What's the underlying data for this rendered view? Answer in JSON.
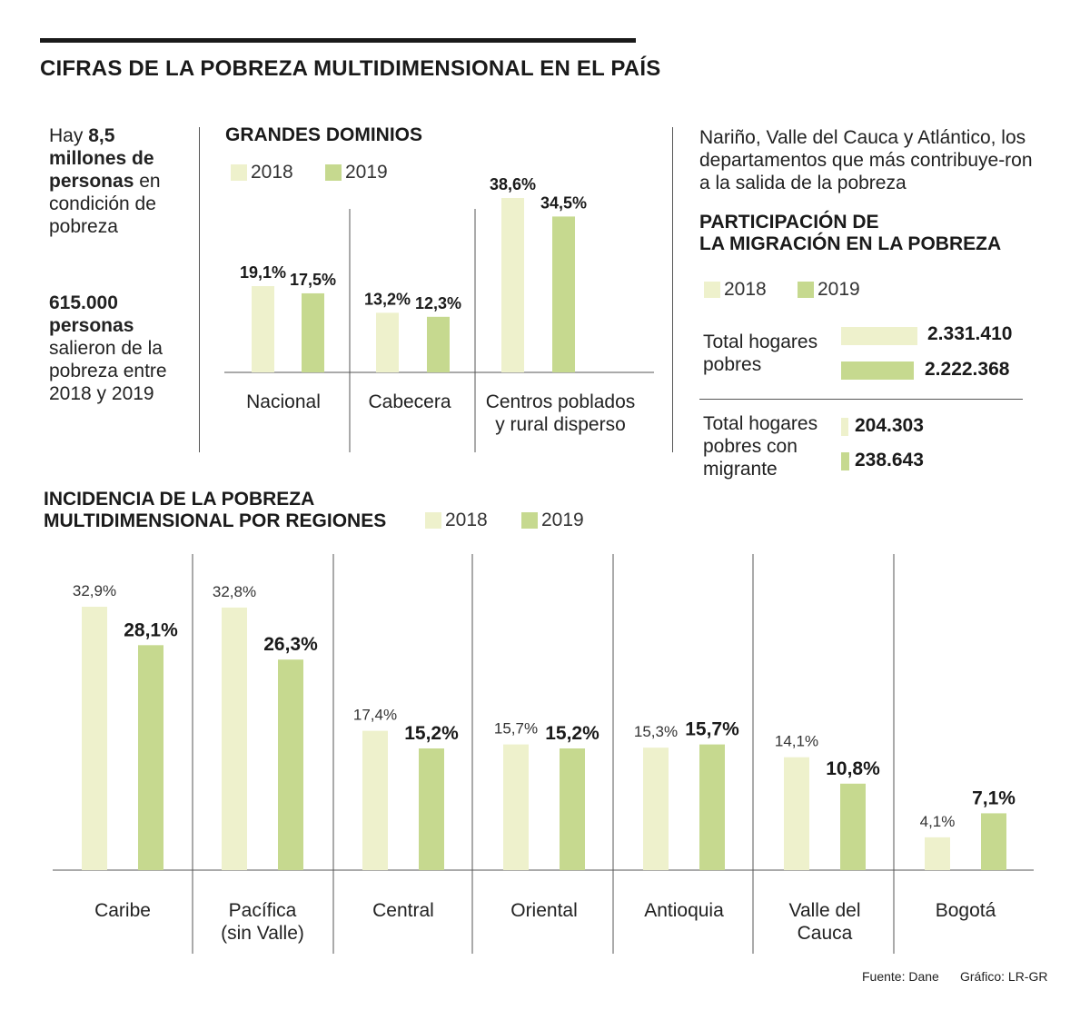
{
  "colors": {
    "y2018": "#eef1cc",
    "y2019": "#c6d98f",
    "axis": "#555555",
    "text": "#1a1a1a"
  },
  "title": "CIFRAS DE LA POBREZA MULTIDIMENSIONAL EN EL PAÍS",
  "intro": {
    "p1_pre": "Hay ",
    "p1_bold": "8,5 millones de personas",
    "p1_post": " en condición de pobreza",
    "p2_bold": "615.000 personas",
    "p2_post": "salieron de la pobreza entre 2018 y 2019"
  },
  "legend": {
    "y2018": "2018",
    "y2019": "2019"
  },
  "right_panel": {
    "intro": "Nariño, Valle del Cauca y Atlántico, los departamentos que más contribuye-ron a la salida de la pobreza",
    "heading_line1": "PARTICIPACIÓN DE",
    "heading_line2": "LA MIGRACIÓN EN LA POBREZA",
    "rows": [
      {
        "label": "Total hogares pobres",
        "v2018": "2.331.410",
        "v2019": "2.222.368",
        "n2018": 2331410,
        "n2019": 2222368
      },
      {
        "label": "Total hogares pobres con migrante",
        "v2018": "204.303",
        "v2019": "238.643",
        "n2018": 204303,
        "n2019": 238643
      }
    ]
  },
  "chart_data": [
    {
      "type": "bar",
      "title": "GRANDES DOMINIOS",
      "categories": [
        "Nacional",
        "Cabecera",
        "Centros poblados y rural disperso"
      ],
      "category_lines": [
        [
          "Nacional"
        ],
        [
          "Cabecera"
        ],
        [
          "Centros poblados",
          "y rural disperso"
        ]
      ],
      "series": [
        {
          "name": "2018",
          "values": [
            19.1,
            13.2,
            38.6
          ],
          "labels": [
            "19,1%",
            "13,2%",
            "38,6%"
          ]
        },
        {
          "name": "2019",
          "values": [
            17.5,
            12.3,
            34.5
          ],
          "labels": [
            "17,5%",
            "12,3%",
            "34,5%"
          ]
        }
      ],
      "unit": "%",
      "ylim": [
        0,
        40
      ]
    },
    {
      "type": "bar",
      "title": "INCIDENCIA DE LA POBREZA MULTIDIMENSIONAL POR REGIONES",
      "title_line1": "INCIDENCIA DE LA POBREZA",
      "title_line2": "MULTIDIMENSIONAL POR REGIONES",
      "categories": [
        "Caribe",
        "Pacífica (sin Valle)",
        "Central",
        "Oriental",
        "Antioquia",
        "Valle del Cauca",
        "Bogotá"
      ],
      "category_lines": [
        [
          "Caribe"
        ],
        [
          "Pacífica",
          "(sin Valle)"
        ],
        [
          "Central"
        ],
        [
          "Oriental"
        ],
        [
          "Antioquia"
        ],
        [
          "Valle del",
          "Cauca"
        ],
        [
          "Bogotá"
        ]
      ],
      "series": [
        {
          "name": "2018",
          "values": [
            32.9,
            32.8,
            17.4,
            15.7,
            15.3,
            14.1,
            4.1
          ],
          "labels": [
            "32,9%",
            "32,8%",
            "17,4%",
            "15,7%",
            "15,3%",
            "14,1%",
            "4,1%"
          ]
        },
        {
          "name": "2019",
          "values": [
            28.1,
            26.3,
            15.2,
            15.2,
            15.7,
            10.8,
            7.1
          ],
          "labels": [
            "28,1%",
            "26,3%",
            "15,2%",
            "15,2%",
            "15,7%",
            "10,8%",
            "7,1%"
          ]
        }
      ],
      "unit": "%",
      "ylim": [
        0,
        33
      ]
    }
  ],
  "footer": {
    "source": "Fuente: Dane",
    "credit": "Gráfico: LR-GR"
  }
}
